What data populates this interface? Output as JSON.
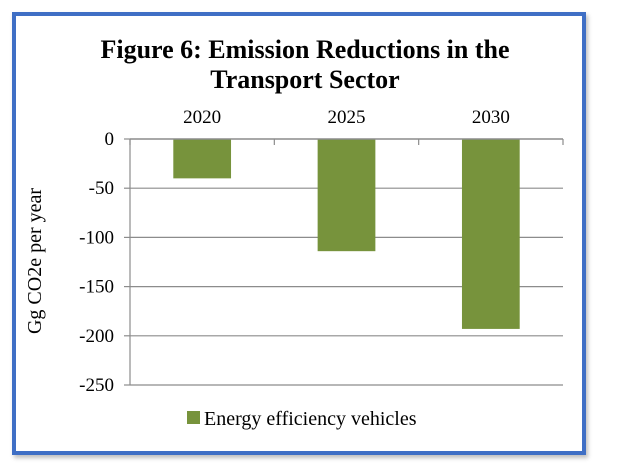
{
  "chart_data": {
    "type": "bar",
    "title_lines": [
      "Figure 6: Emission Reductions in the",
      "Transport Sector"
    ],
    "categories": [
      "2020",
      "2025",
      "2030"
    ],
    "series": [
      {
        "name": "Energy efficiency vehicles",
        "values": [
          -40,
          -114,
          -193
        ],
        "color": "#77933c"
      }
    ],
    "ylabel": "Gg CO2e per year",
    "xlabel": "",
    "ylim": [
      -250,
      0
    ],
    "yticks": [
      0,
      -50,
      -100,
      -150,
      -200,
      -250
    ],
    "ytick_labels": [
      "0",
      "-50",
      "-100",
      "-150",
      "-200",
      "-250"
    ],
    "grid": true,
    "category_axis_position": "top",
    "legend_placement": "bottom-center"
  },
  "colors": {
    "frame_border": "#3f6fc5",
    "gridline": "#8c8c8c",
    "bar": "#77933c"
  }
}
